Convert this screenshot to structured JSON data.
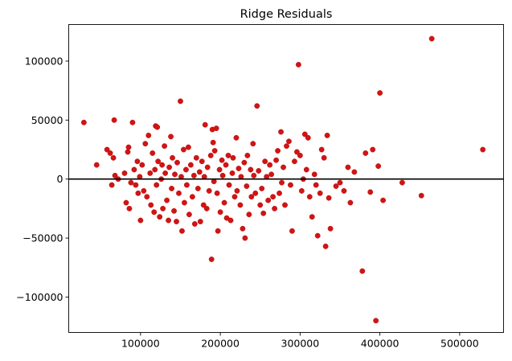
{
  "chart_data": {
    "type": "scatter",
    "title": "Ridge Residuals",
    "xlabel": "",
    "ylabel": "",
    "xlim": [
      10000,
      555000
    ],
    "ylim": [
      -130000,
      131000
    ],
    "xticks": [
      100000,
      200000,
      300000,
      400000,
      500000
    ],
    "xtick_labels": [
      "100000",
      "200000",
      "300000",
      "400000",
      "500000"
    ],
    "yticks": [
      -100000,
      -50000,
      0,
      50000,
      100000
    ],
    "ytick_labels": [
      "−100000",
      "−50000",
      "0",
      "50000",
      "100000"
    ],
    "reference_line": {
      "y": 0,
      "color": "#000000"
    },
    "grid": false,
    "point_color": "#d11414",
    "points": [
      [
        29000,
        48000
      ],
      [
        45000,
        12000
      ],
      [
        58000,
        25000
      ],
      [
        62000,
        22000
      ],
      [
        64000,
        -5000
      ],
      [
        66000,
        18000
      ],
      [
        67000,
        50000
      ],
      [
        68000,
        3000
      ],
      [
        72000,
        0
      ],
      [
        80000,
        5000
      ],
      [
        82000,
        -20000
      ],
      [
        84000,
        23000
      ],
      [
        85000,
        27000
      ],
      [
        86000,
        -25000
      ],
      [
        88000,
        -3000
      ],
      [
        90000,
        48000
      ],
      [
        92000,
        8000
      ],
      [
        94000,
        -5000
      ],
      [
        96000,
        15000
      ],
      [
        97000,
        -12000
      ],
      [
        99000,
        2000
      ],
      [
        100000,
        -35000
      ],
      [
        102000,
        12000
      ],
      [
        104000,
        -10000
      ],
      [
        106000,
        30000
      ],
      [
        108000,
        -15000
      ],
      [
        110000,
        37000
      ],
      [
        112000,
        5000
      ],
      [
        113000,
        -22000
      ],
      [
        115000,
        22000
      ],
      [
        117000,
        -28000
      ],
      [
        118000,
        8000
      ],
      [
        119000,
        45000
      ],
      [
        120000,
        -5000
      ],
      [
        121000,
        44000
      ],
      [
        122000,
        15000
      ],
      [
        124000,
        -32000
      ],
      [
        126000,
        0
      ],
      [
        127000,
        12000
      ],
      [
        128000,
        -25000
      ],
      [
        130000,
        28000
      ],
      [
        131000,
        5000
      ],
      [
        133000,
        -18000
      ],
      [
        135000,
        -35000
      ],
      [
        136000,
        10000
      ],
      [
        138000,
        36000
      ],
      [
        139000,
        -8000
      ],
      [
        140000,
        18000
      ],
      [
        142000,
        -27000
      ],
      [
        143000,
        4000
      ],
      [
        145000,
        -36000
      ],
      [
        146000,
        14000
      ],
      [
        148000,
        -12000
      ],
      [
        150000,
        66000
      ],
      [
        151000,
        2000
      ],
      [
        152000,
        -44000
      ],
      [
        154000,
        25000
      ],
      [
        155000,
        -20000
      ],
      [
        157000,
        8000
      ],
      [
        158000,
        -5000
      ],
      [
        160000,
        27000
      ],
      [
        161000,
        -30000
      ],
      [
        163000,
        12000
      ],
      [
        165000,
        -15000
      ],
      [
        167000,
        3000
      ],
      [
        168000,
        -38000
      ],
      [
        170000,
        18000
      ],
      [
        172000,
        -8000
      ],
      [
        174000,
        6000
      ],
      [
        175000,
        -36000
      ],
      [
        177000,
        15000
      ],
      [
        179000,
        -22000
      ],
      [
        180000,
        2000
      ],
      [
        181000,
        46000
      ],
      [
        183000,
        -25000
      ],
      [
        184000,
        10000
      ],
      [
        186000,
        -10000
      ],
      [
        188000,
        20000
      ],
      [
        189000,
        -68000
      ],
      [
        190000,
        42000
      ],
      [
        191000,
        31000
      ],
      [
        192000,
        -2000
      ],
      [
        193000,
        24000
      ],
      [
        195000,
        43000
      ],
      [
        196000,
        -12000
      ],
      [
        197000,
        -44000
      ],
      [
        199000,
        8000
      ],
      [
        200000,
        -28000
      ],
      [
        202000,
        16000
      ],
      [
        203000,
        3000
      ],
      [
        205000,
        -20000
      ],
      [
        207000,
        12000
      ],
      [
        208000,
        -33000
      ],
      [
        210000,
        20000
      ],
      [
        211000,
        -5000
      ],
      [
        213000,
        -35000
      ],
      [
        215000,
        5000
      ],
      [
        216000,
        18000
      ],
      [
        218000,
        -15000
      ],
      [
        220000,
        35000
      ],
      [
        221000,
        -10000
      ],
      [
        223000,
        9000
      ],
      [
        225000,
        -22000
      ],
      [
        226000,
        2000
      ],
      [
        228000,
        -42000
      ],
      [
        230000,
        14000
      ],
      [
        231000,
        -50000
      ],
      [
        233000,
        -6000
      ],
      [
        234000,
        20000
      ],
      [
        236000,
        -30000
      ],
      [
        238000,
        8000
      ],
      [
        239000,
        -15000
      ],
      [
        241000,
        30000
      ],
      [
        242000,
        3000
      ],
      [
        244000,
        -12000
      ],
      [
        246000,
        62000
      ],
      [
        248000,
        7000
      ],
      [
        250000,
        -22000
      ],
      [
        252000,
        -8000
      ],
      [
        254000,
        -29000
      ],
      [
        256000,
        15000
      ],
      [
        258000,
        2000
      ],
      [
        260000,
        -18000
      ],
      [
        262000,
        12000
      ],
      [
        264000,
        4000
      ],
      [
        266000,
        -15000
      ],
      [
        268000,
        -25000
      ],
      [
        270000,
        16000
      ],
      [
        272000,
        24000
      ],
      [
        274000,
        -12000
      ],
      [
        276000,
        40000
      ],
      [
        277000,
        -3000
      ],
      [
        279000,
        10000
      ],
      [
        281000,
        -22000
      ],
      [
        283000,
        28000
      ],
      [
        286000,
        32000
      ],
      [
        288000,
        -5000
      ],
      [
        290000,
        -44000
      ],
      [
        293000,
        15000
      ],
      [
        296000,
        23000
      ],
      [
        298000,
        97000
      ],
      [
        300000,
        20000
      ],
      [
        302000,
        -10000
      ],
      [
        304000,
        0
      ],
      [
        306000,
        38000
      ],
      [
        308000,
        8000
      ],
      [
        310000,
        35000
      ],
      [
        312000,
        -15000
      ],
      [
        315000,
        -32000
      ],
      [
        318000,
        4000
      ],
      [
        320000,
        -5000
      ],
      [
        322000,
        -48000
      ],
      [
        325000,
        -12000
      ],
      [
        327000,
        25000
      ],
      [
        330000,
        18000
      ],
      [
        332000,
        -57000
      ],
      [
        334000,
        37000
      ],
      [
        336000,
        -16000
      ],
      [
        338000,
        -42000
      ],
      [
        345000,
        -6000
      ],
      [
        350000,
        -3000
      ],
      [
        355000,
        -10000
      ],
      [
        360000,
        10000
      ],
      [
        363000,
        -20000
      ],
      [
        368000,
        6000
      ],
      [
        378000,
        -78000
      ],
      [
        382000,
        22000
      ],
      [
        388000,
        -11000
      ],
      [
        391000,
        25000
      ],
      [
        395000,
        -120000
      ],
      [
        398000,
        11000
      ],
      [
        400000,
        73000
      ],
      [
        404000,
        -18000
      ],
      [
        428000,
        -3000
      ],
      [
        452000,
        -14000
      ],
      [
        465000,
        119000
      ],
      [
        529000,
        25000
      ]
    ]
  }
}
